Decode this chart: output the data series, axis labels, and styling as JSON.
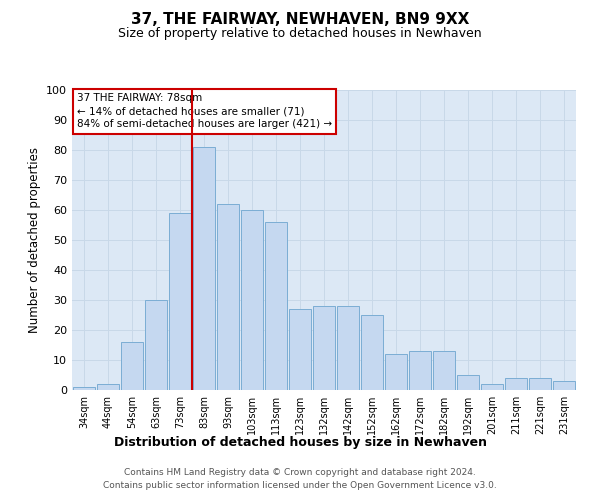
{
  "title": "37, THE FAIRWAY, NEWHAVEN, BN9 9XX",
  "subtitle": "Size of property relative to detached houses in Newhaven",
  "xlabel": "Distribution of detached houses by size in Newhaven",
  "ylabel": "Number of detached properties",
  "categories": [
    "34sqm",
    "44sqm",
    "54sqm",
    "63sqm",
    "73sqm",
    "83sqm",
    "93sqm",
    "103sqm",
    "113sqm",
    "123sqm",
    "132sqm",
    "142sqm",
    "152sqm",
    "162sqm",
    "172sqm",
    "182sqm",
    "192sqm",
    "201sqm",
    "211sqm",
    "221sqm",
    "231sqm"
  ],
  "values": [
    1,
    2,
    16,
    30,
    59,
    81,
    62,
    60,
    56,
    27,
    28,
    28,
    25,
    12,
    13,
    13,
    5,
    2,
    4,
    4,
    3
  ],
  "bar_color": "#c5d8f0",
  "bar_edge_color": "#7badd4",
  "vertical_line_x": 4.5,
  "vertical_line_color": "#cc0000",
  "annotation_title": "37 THE FAIRWAY: 78sqm",
  "annotation_line1": "← 14% of detached houses are smaller (71)",
  "annotation_line2": "84% of semi-detached houses are larger (421) →",
  "annotation_box_color": "#ffffff",
  "annotation_box_edge_color": "#cc0000",
  "ylim": [
    0,
    100
  ],
  "yticks": [
    0,
    10,
    20,
    30,
    40,
    50,
    60,
    70,
    80,
    90,
    100
  ],
  "grid_color": "#c8d8e8",
  "plot_background_color": "#dce8f5",
  "figure_background_color": "#ffffff",
  "footnote1": "Contains HM Land Registry data © Crown copyright and database right 2024.",
  "footnote2": "Contains public sector information licensed under the Open Government Licence v3.0."
}
